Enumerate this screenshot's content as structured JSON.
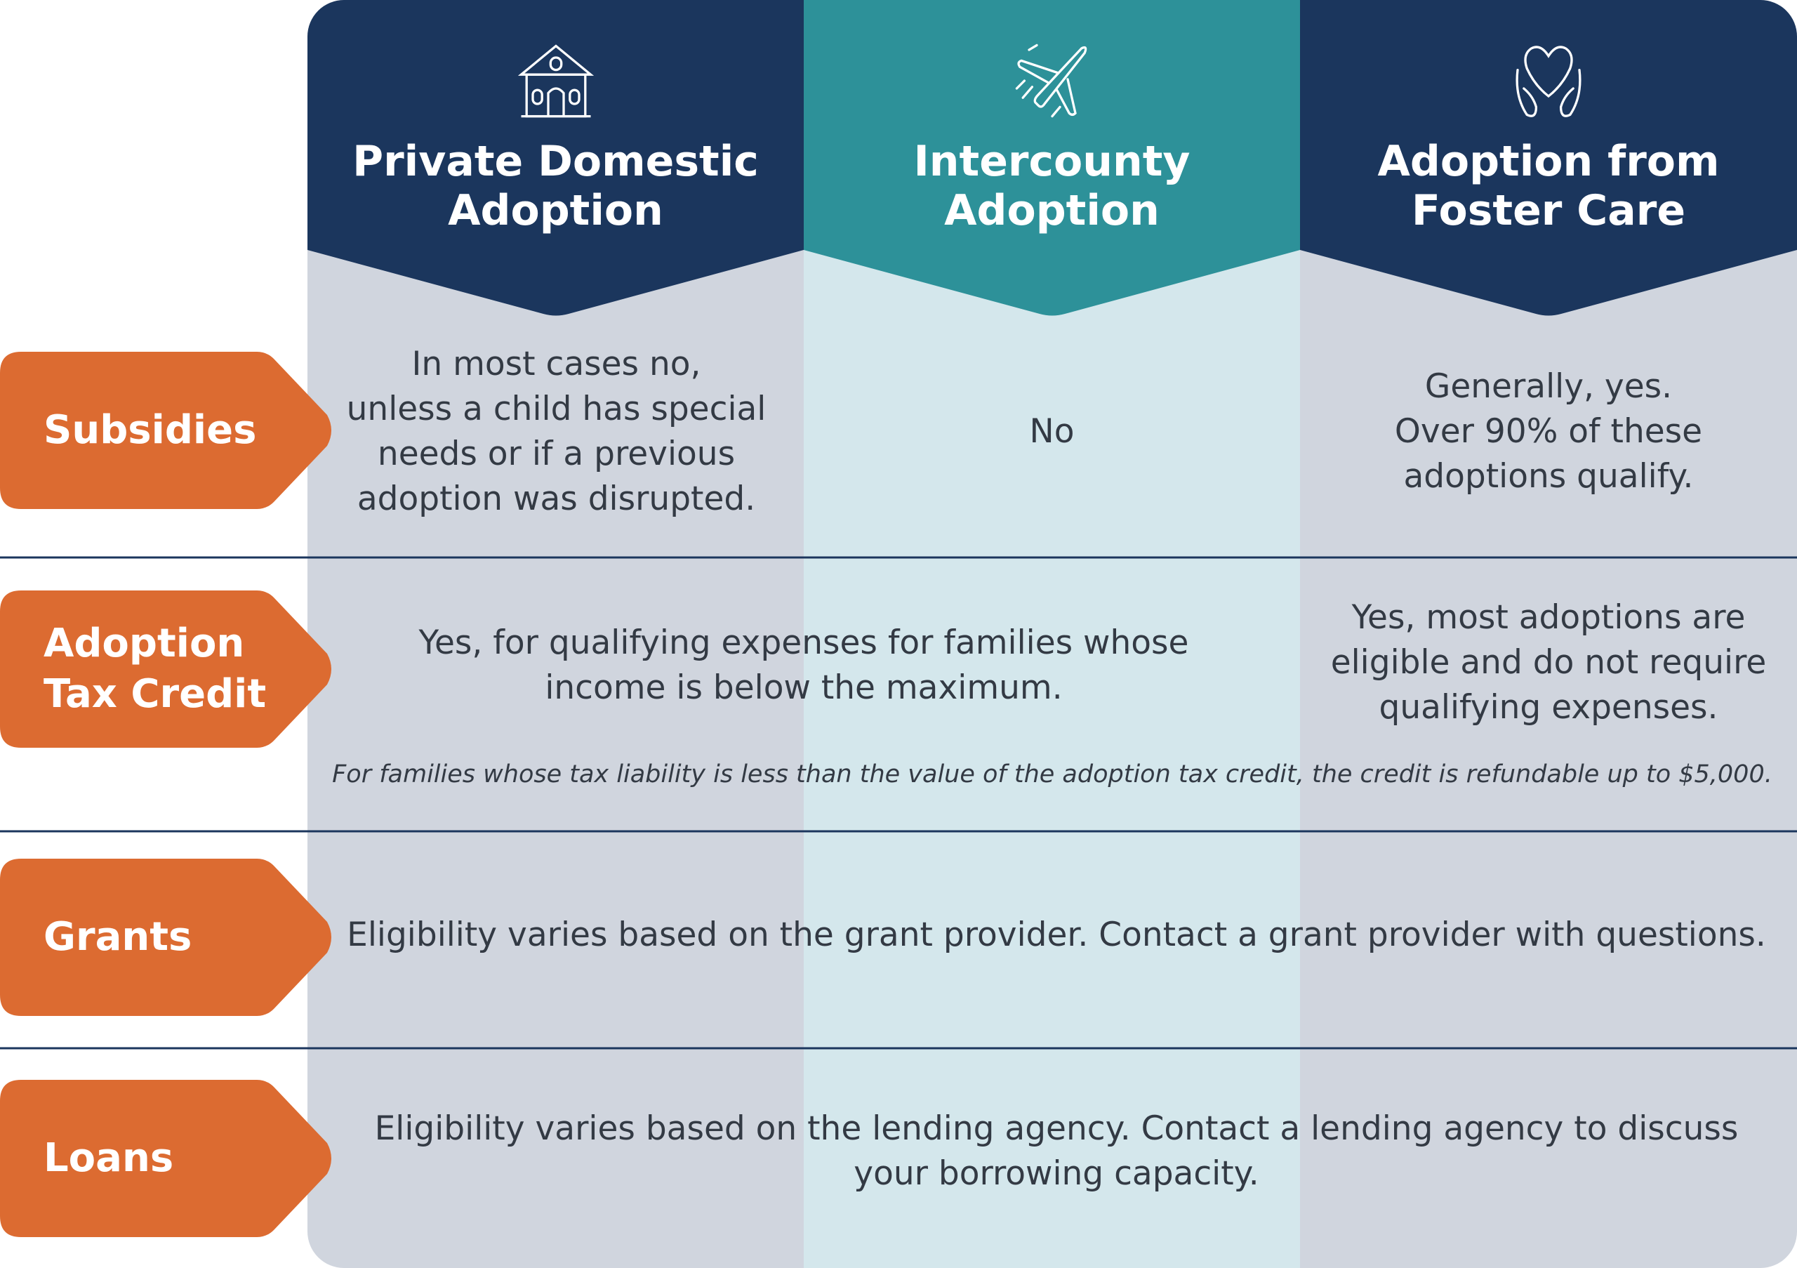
{
  "colors": {
    "navy": "#1b365d",
    "teal": "#2d9199",
    "gray_column": "#d0d5de",
    "teal_column": "#d4e7ec",
    "orange": "#dc6b31",
    "text": "#333a44",
    "divider": "#1b365d"
  },
  "columns": [
    {
      "title": "Private Domestic\nAdoption",
      "icon": "house-icon"
    },
    {
      "title": "Intercounty\nAdoption",
      "icon": "airplane-icon"
    },
    {
      "title": "Adoption from\nFoster Care",
      "icon": "heart-hands-icon"
    }
  ],
  "rows": {
    "subsidies": {
      "label": "Subsidies",
      "private": "In most cases no,\nunless a child has special\nneeds or if a previous\nadoption was disrupted.",
      "intercountry": "No",
      "foster": "Generally, yes.\nOver 90% of these\nadoptions qualify."
    },
    "tax_credit": {
      "label": "Adoption\nTax Credit",
      "private_intercountry": "Yes, for qualifying expenses for families whose\nincome is below the maximum.",
      "foster": "Yes, most adoptions are\neligible and do not require\nqualifying expenses.",
      "note": "For families whose tax liability is less than the value of the adoption tax credit, the credit is refundable up to $5,000."
    },
    "grants": {
      "label": "Grants",
      "all": "Eligibility varies based on the grant provider. Contact a grant provider with questions."
    },
    "loans": {
      "label": "Loans",
      "all": "Eligibility varies based on the lending agency. Contact a lending agency to discuss\nyour borrowing capacity."
    }
  }
}
